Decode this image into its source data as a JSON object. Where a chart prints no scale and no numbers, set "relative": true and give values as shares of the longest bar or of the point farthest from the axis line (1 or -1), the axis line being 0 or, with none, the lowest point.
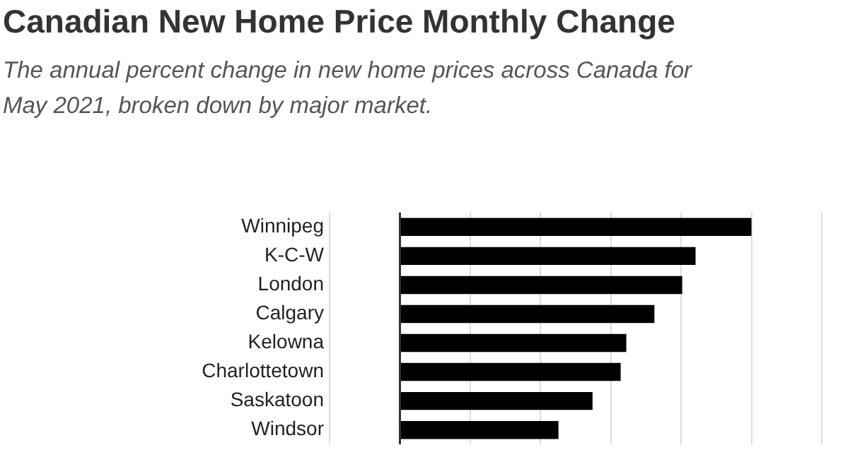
{
  "chart_data": {
    "type": "bar",
    "orientation": "horizontal",
    "relative": true,
    "title": "Canadian New Home Price Monthly Change",
    "subtitle": "The annual percent change in new home prices across Canada for May 2021, broken down by major market.",
    "categories": [
      "Winnipeg",
      "K-C-W",
      "London",
      "Calgary",
      "Kelowna",
      "Charlottetown",
      "Saskatoon",
      "Windsor"
    ],
    "values": [
      1,
      0.841,
      0.803,
      0.724,
      0.644,
      0.628,
      0.548,
      0.451
    ],
    "color": "#000000",
    "grid": "x",
    "legend": false,
    "tick_labels": "y"
  }
}
